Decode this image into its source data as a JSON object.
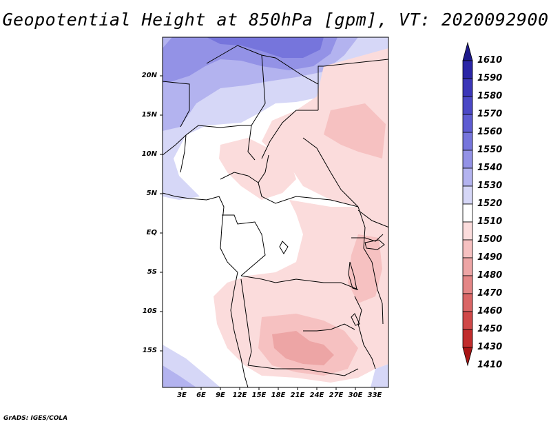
{
  "title": "Geopotential Height at 850hPa [gpm], VT: 2020092900",
  "credit": "GrADS: IGES/COLA",
  "map": {
    "y_ticks": [
      "20N",
      "15N",
      "10N",
      "5N",
      "EQ",
      "5S",
      "10S",
      "15S"
    ],
    "x_ticks": [
      "3E",
      "6E",
      "9E",
      "12E",
      "15E",
      "18E",
      "21E",
      "24E",
      "27E",
      "30E",
      "33E"
    ]
  },
  "colorbar": {
    "levels": [
      "1610",
      "1590",
      "1580",
      "1570",
      "1560",
      "1550",
      "1540",
      "1530",
      "1520",
      "1510",
      "1500",
      "1490",
      "1480",
      "1470",
      "1460",
      "1450",
      "1430",
      "1410"
    ],
    "colors": [
      "#1e1a8c",
      "#2a25a6",
      "#3b36b8",
      "#4b48c6",
      "#5e5cd2",
      "#7675dc",
      "#9392e6",
      "#b3b3ef",
      "#d6d7f7",
      "#ffffff",
      "#fbdcdc",
      "#f6c1c1",
      "#eda5a5",
      "#e48686",
      "#da6666",
      "#d04848",
      "#c12c2c",
      "#a81515"
    ]
  }
}
